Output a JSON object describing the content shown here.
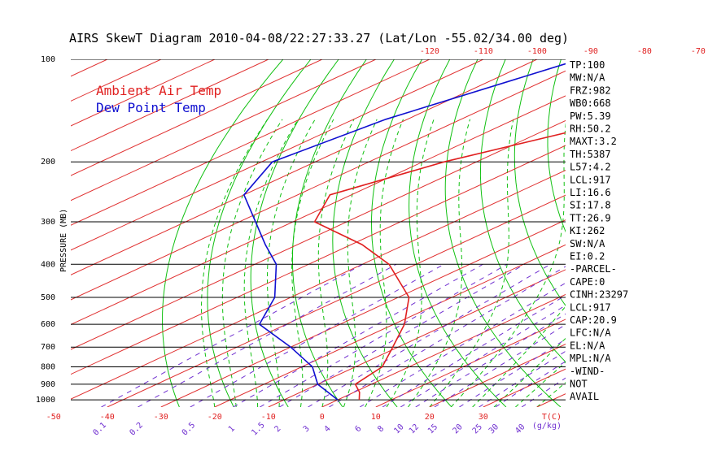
{
  "chart_data": {
    "type": "skewt",
    "title": "AIRS SkewT Diagram 2010-04-08/22:27:33.27 (Lat/Lon -55.02/34.00 deg)",
    "ylabel": "PRESSURE (MB)",
    "xlabel": "T(C)",
    "mixing_ratio_unit": "(g/kg)",
    "legend": [
      {
        "name": "Ambient Air Temp",
        "color": "#e02020"
      },
      {
        "name": "Dew Point Temp",
        "color": "#1010d0"
      }
    ],
    "pressure_ticks": [
      100,
      200,
      300,
      400,
      500,
      600,
      700,
      800,
      900,
      1000
    ],
    "top_temp_ticks": [
      -120,
      -110,
      -100,
      -90,
      -80,
      -70,
      -60,
      -50,
      -40
    ],
    "bottom_temp_ticks": [
      -50,
      -40,
      -30,
      -20,
      -10,
      0,
      10,
      20,
      30
    ],
    "mixing_ratio_labels": [
      "0.1",
      "0.2",
      "0.5",
      "1",
      "1.5",
      "2",
      "3",
      "4",
      "6",
      "8",
      "10",
      "12",
      "15",
      "20",
      "25",
      "30",
      "40"
    ],
    "ambient_temp": [
      {
        "p": 100,
        "t": -49
      },
      {
        "p": 150,
        "t": -60
      },
      {
        "p": 200,
        "t": -76
      },
      {
        "p": 250,
        "t": -84
      },
      {
        "p": 300,
        "t": -76
      },
      {
        "p": 350,
        "t": -58
      },
      {
        "p": 400,
        "t": -45
      },
      {
        "p": 500,
        "t": -28
      },
      {
        "p": 600,
        "t": -18
      },
      {
        "p": 700,
        "t": -11
      },
      {
        "p": 800,
        "t": -5
      },
      {
        "p": 900,
        "t": -3
      },
      {
        "p": 950,
        "t": 1
      },
      {
        "p": 1000,
        "t": 4
      }
    ],
    "dew_point": [
      {
        "p": 100,
        "t": -92
      },
      {
        "p": 150,
        "t": -104
      },
      {
        "p": 200,
        "t": -108
      },
      {
        "p": 250,
        "t": -100
      },
      {
        "p": 300,
        "t": -87
      },
      {
        "p": 350,
        "t": -76
      },
      {
        "p": 400,
        "t": -66
      },
      {
        "p": 500,
        "t": -53
      },
      {
        "p": 600,
        "t": -45
      },
      {
        "p": 700,
        "t": -30
      },
      {
        "p": 800,
        "t": -18
      },
      {
        "p": 900,
        "t": -10
      },
      {
        "p": 1000,
        "t": 0
      }
    ],
    "colors": {
      "isotherm": "#e03030",
      "dry_adiabat": "#10c010",
      "moist_adiabat": "#10c010",
      "mixing_ratio": "#7030d0",
      "isobar": "#000000",
      "top_axis": "#e02020",
      "bottom_axis": "#e02020",
      "mixing_label": "#7030d0"
    }
  },
  "indices": [
    "TP:100",
    "MW:N/A",
    "FRZ:982",
    "WB0:668",
    "PW:5.39",
    "RH:50.2",
    "MAXT:3.2",
    "TH:5387",
    "L57:4.2",
    "LCL:917",
    "LI:16.6",
    "SI:17.8",
    "TT:26.9",
    "KI:262",
    "SW:N/A",
    "EI:0.2",
    "-PARCEL-",
    "CAPE:0",
    "CINH:23297",
    "LCL:917",
    "CAP:20.9",
    "LFC:N/A",
    "EL:N/A",
    "MPL:N/A",
    "-WIND-",
    "NOT",
    "AVAIL"
  ]
}
